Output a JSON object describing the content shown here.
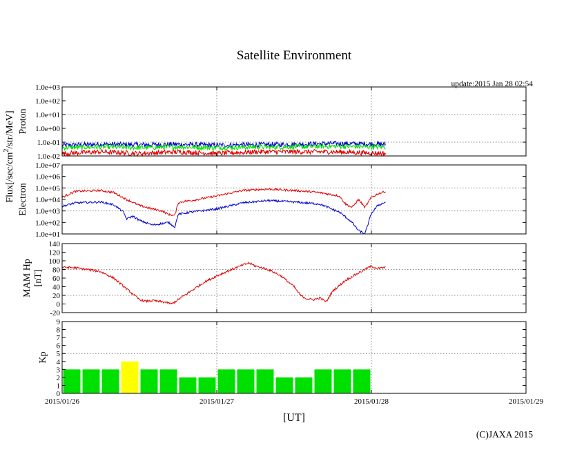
{
  "title": "Satellite Environment",
  "update": "update:2015 Jan 28 02:54",
  "copyright": "(C)JAXA 2015",
  "xlabel": "[UT]",
  "x_ticks": [
    "2015/01/26",
    "2015/01/27",
    "2015/01/28",
    "2015/01/29"
  ],
  "flux_label": {
    "pre": "Flux[/sec/cm",
    "sup": "2",
    "post": "/str/MeV]"
  },
  "colors": {
    "red": "#e00000",
    "blue": "#0000d0",
    "green": "#00e000",
    "yellow": "#ffff00",
    "grid": "#888888"
  },
  "chart_data": [
    {
      "type": "line",
      "panel": "proton",
      "ylabel": "Proton",
      "yscale": "log",
      "ylim": [
        0.01,
        1000
      ],
      "y_ticks": [
        "1.0e-02",
        "1.0e-01",
        "1.0e+00",
        "1.0e+01",
        "1.0e+02",
        "1.0e+03"
      ],
      "xlim": [
        "2015-01-26T00:00",
        "2015-01-29T00:00"
      ],
      "grid": true,
      "series": [
        {
          "color": "#0000d0",
          "x_hours": [
            0,
            6,
            12,
            18,
            24,
            30,
            36,
            42,
            50.2
          ],
          "values": [
            0.06,
            0.07,
            0.065,
            0.07,
            0.06,
            0.065,
            0.07,
            0.08,
            0.07
          ]
        },
        {
          "color": "#00e000",
          "x_hours": [
            0,
            6,
            12,
            18,
            24,
            30,
            36,
            42,
            50.2
          ],
          "values": [
            0.04,
            0.045,
            0.04,
            0.045,
            0.04,
            0.045,
            0.045,
            0.05,
            0.045
          ]
        },
        {
          "color": "#e00000",
          "x_hours": [
            0,
            6,
            12,
            18,
            24,
            30,
            36,
            42,
            50.2
          ],
          "values": [
            0.015,
            0.02,
            0.015,
            0.02,
            0.015,
            0.02,
            0.02,
            0.02,
            0.015
          ]
        }
      ]
    },
    {
      "type": "line",
      "panel": "electron",
      "ylabel": "Electron",
      "yscale": "log",
      "ylim": [
        10,
        10000000
      ],
      "y_ticks": [
        "1.0e+01",
        "1.0e+02",
        "1.0e+03",
        "1.0e+04",
        "1.0e+05",
        "1.0e+06",
        "1.0e+07"
      ],
      "xlim": [
        "2015-01-26T00:00",
        "2015-01-29T00:00"
      ],
      "grid": true,
      "series": [
        {
          "color": "#e00000",
          "x_hours": [
            0,
            2,
            6,
            8,
            10,
            12,
            14,
            15.5,
            16.5,
            17.5,
            18,
            19,
            20,
            24,
            28,
            32,
            36,
            40,
            43,
            44,
            45,
            46,
            47,
            48,
            49,
            50.2
          ],
          "values": [
            15000,
            50000,
            60000,
            40000,
            10000,
            3000,
            1500,
            1000,
            500,
            400,
            5000,
            7000,
            8000,
            20000,
            60000,
            80000,
            60000,
            40000,
            20000,
            4000,
            2000,
            10000,
            2000,
            15000,
            30000,
            50000
          ]
        },
        {
          "color": "#0000d0",
          "x_hours": [
            0,
            2,
            6,
            8,
            9.5,
            10,
            11,
            12,
            14,
            15.5,
            16.5,
            17.5,
            18,
            20,
            24,
            28,
            32,
            36,
            40,
            43,
            44,
            45,
            46,
            47,
            48,
            49,
            50.2
          ],
          "values": [
            2500,
            5000,
            6000,
            3500,
            800,
            200,
            350,
            150,
            60,
            80,
            100,
            40,
            500,
            800,
            1500,
            5000,
            8000,
            6000,
            4000,
            800,
            300,
            100,
            20,
            10,
            600,
            3000,
            6000
          ]
        }
      ]
    },
    {
      "type": "line",
      "panel": "mam_hp",
      "ylabel": "MAM Hp [nT]",
      "ylim": [
        -20,
        140
      ],
      "y_ticks": [
        "-20",
        "0",
        "20",
        "40",
        "60",
        "80",
        "100",
        "120",
        "140"
      ],
      "xlim": [
        "2015-01-26T00:00",
        "2015-01-29T00:00"
      ],
      "grid": true,
      "series": [
        {
          "color": "#e00000",
          "x_hours": [
            0,
            2,
            4,
            6,
            8,
            10,
            12,
            13,
            14,
            16,
            17,
            18,
            20,
            22,
            24,
            26,
            28,
            29,
            30,
            32,
            34,
            36,
            37,
            38,
            39,
            40,
            41,
            42,
            44,
            46,
            47,
            48,
            49,
            50.2
          ],
          "values": [
            85,
            84,
            80,
            75,
            60,
            35,
            10,
            6,
            8,
            4,
            0,
            10,
            30,
            50,
            65,
            78,
            90,
            95,
            88,
            80,
            65,
            40,
            20,
            12,
            10,
            14,
            5,
            30,
            55,
            72,
            80,
            88,
            82,
            85
          ]
        }
      ]
    },
    {
      "type": "bar",
      "panel": "kp",
      "ylabel": "Kp",
      "ylim": [
        0,
        9
      ],
      "y_ticks": [
        "0",
        "1",
        "2",
        "3",
        "4",
        "5",
        "6",
        "7",
        "8",
        "9"
      ],
      "xlim": [
        "2015-01-26T00:00",
        "2015-01-29T00:00"
      ],
      "grid": true,
      "bar_width_hours": 3,
      "x_start_hours": [
        0,
        3,
        6,
        9,
        12,
        15,
        18,
        21,
        24,
        27,
        30,
        33,
        36,
        39,
        42,
        45
      ],
      "values": [
        3,
        3,
        3,
        4,
        3,
        3,
        2,
        2,
        3,
        3,
        3,
        2,
        2,
        3,
        3,
        3
      ],
      "highlight_threshold": 4
    }
  ]
}
